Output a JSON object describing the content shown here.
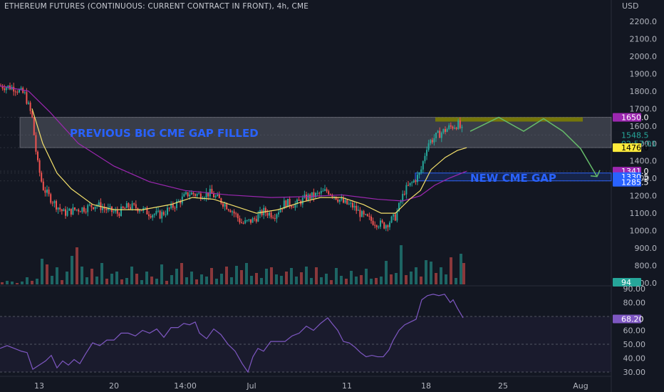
{
  "header": {
    "title": "ETHEREUM FUTURES (CONTINUOUS: CURRENT CONTRACT IN FRONT), 4h, CME"
  },
  "colors": {
    "background": "#131722",
    "up": "#26a69a",
    "down": "#ef5350",
    "ma_fast": "#f5e16b",
    "ma_slow": "#9c27b0",
    "rsi": "#7e57c2",
    "annotation_text": "#2962ff",
    "projection": "#66bb6a",
    "gap_fill": "#808000"
  },
  "annotations": {
    "previous_gap_label": "PREVIOUS BIG CME GAP FILLED",
    "new_gap_label": "NEW CME GAP"
  },
  "price_tags": [
    {
      "value": "1650.0",
      "bg": "#9c27b0",
      "fg": "#ffffff"
    },
    {
      "value": "1548.5",
      "bg": "#131722",
      "fg": "#26a69a"
    },
    {
      "value": "02:57:01",
      "bg": "#131722",
      "fg": "#26a69a"
    },
    {
      "value": "1476.0",
      "bg": "#ffeb3b",
      "fg": "#000000"
    },
    {
      "value": "1341.0",
      "bg": "#9c27b0",
      "fg": "#ffffff"
    },
    {
      "value": "1330.5",
      "bg": "#2962ff",
      "fg": "#ffffff"
    },
    {
      "value": "1285.5",
      "bg": "#2962ff",
      "fg": "#ffffff"
    },
    {
      "value": "94",
      "bg": "#26a69a",
      "fg": "#ffffff"
    },
    {
      "value": "68.20",
      "bg": "#7e57c2",
      "fg": "#ffffff"
    }
  ],
  "chart_data": [
    {
      "type": "candlestick",
      "title": "ETHEREUM FUTURES (CONTINUOUS: CURRENT CONTRACT IN FRONT), 4h, CME",
      "currency": "USD",
      "ylim": [
        700,
        2300
      ],
      "y_ticks": [
        "2200.0",
        "2100.0",
        "2000.0",
        "1900.0",
        "1800.0",
        "1700.0",
        "1600.0",
        "1500.0",
        "1400.0",
        "1300.0",
        "1200.0",
        "1100.0",
        "1000.0",
        "900.0",
        "800.0",
        "700.0"
      ],
      "x_ticks": [
        "13",
        "20",
        "14:00",
        "Jul",
        "11",
        "18",
        "25",
        "Aug"
      ],
      "price_path": [
        [
          0,
          1830
        ],
        [
          20,
          1820
        ],
        [
          35,
          1780
        ],
        [
          45,
          1650
        ],
        [
          52,
          1400
        ],
        [
          60,
          1250
        ],
        [
          68,
          1200
        ],
        [
          78,
          1150
        ],
        [
          90,
          1100
        ],
        [
          105,
          1120
        ],
        [
          120,
          1130
        ],
        [
          135,
          1150
        ],
        [
          150,
          1120
        ],
        [
          165,
          1100
        ],
        [
          180,
          1140
        ],
        [
          195,
          1130
        ],
        [
          210,
          1100
        ],
        [
          225,
          1090
        ],
        [
          240,
          1130
        ],
        [
          255,
          1180
        ],
        [
          265,
          1215
        ],
        [
          280,
          1205
        ],
        [
          295,
          1215
        ],
        [
          310,
          1170
        ],
        [
          325,
          1120
        ],
        [
          340,
          1040
        ],
        [
          355,
          1060
        ],
        [
          370,
          1110
        ],
        [
          385,
          1090
        ],
        [
          400,
          1160
        ],
        [
          415,
          1150
        ],
        [
          430,
          1190
        ],
        [
          445,
          1205
        ],
        [
          460,
          1230
        ],
        [
          470,
          1200
        ],
        [
          482,
          1160
        ],
        [
          495,
          1140
        ],
        [
          510,
          1080
        ],
        [
          525,
          1050
        ],
        [
          540,
          1030
        ],
        [
          555,
          1080
        ],
        [
          568,
          1230
        ],
        [
          580,
          1280
        ],
        [
          590,
          1330
        ],
        [
          600,
          1500
        ],
        [
          615,
          1550
        ],
        [
          630,
          1590
        ],
        [
          643,
          1610
        ],
        [
          650,
          1560
        ]
      ],
      "series": [
        {
          "name": "",
          "kind": "ma_fast",
          "points": [
            [
              45,
              1700
            ],
            [
              60,
              1500
            ],
            [
              80,
              1330
            ],
            [
              100,
              1240
            ],
            [
              130,
              1150
            ],
            [
              160,
              1120
            ],
            [
              200,
              1120
            ],
            [
              240,
              1150
            ],
            [
              270,
              1190
            ],
            [
              300,
              1180
            ],
            [
              330,
              1140
            ],
            [
              360,
              1100
            ],
            [
              390,
              1120
            ],
            [
              420,
              1160
            ],
            [
              450,
              1190
            ],
            [
              480,
              1190
            ],
            [
              510,
              1150
            ],
            [
              535,
              1100
            ],
            [
              555,
              1100
            ],
            [
              575,
              1180
            ],
            [
              590,
              1230
            ],
            [
              605,
              1350
            ],
            [
              625,
              1420
            ],
            [
              642,
              1460
            ],
            [
              655,
              1476
            ]
          ]
        },
        {
          "name": "",
          "kind": "ma_slow",
          "points": [
            [
              0,
              1830
            ],
            [
              40,
              1800
            ],
            [
              70,
              1680
            ],
            [
              110,
              1500
            ],
            [
              160,
              1370
            ],
            [
              210,
              1280
            ],
            [
              260,
              1230
            ],
            [
              320,
              1205
            ],
            [
              380,
              1190
            ],
            [
              430,
              1195
            ],
            [
              480,
              1205
            ],
            [
              530,
              1180
            ],
            [
              565,
              1170
            ],
            [
              590,
              1200
            ],
            [
              610,
              1260
            ],
            [
              630,
              1300
            ],
            [
              655,
              1341
            ]
          ]
        }
      ],
      "levels": [
        {
          "value": 1650.0
        },
        {
          "value": 1548.5
        },
        {
          "value": 1476.0
        },
        {
          "value": 1341.0
        },
        {
          "value": 1330.5
        },
        {
          "value": 1285.5
        }
      ],
      "zones": [
        {
          "label": "PREVIOUS BIG CME GAP FILLED",
          "y_top": 1650,
          "y_bottom": 1476,
          "x_start": 28,
          "x_end": 858
        },
        {
          "label": "NEW CME GAP",
          "y_top": 1330.5,
          "y_bottom": 1285.5,
          "x_start": 583,
          "x_end": 858
        }
      ],
      "projection_path": [
        [
          660,
          1570
        ],
        [
          700,
          1650
        ],
        [
          735,
          1570
        ],
        [
          763,
          1642
        ],
        [
          790,
          1570
        ],
        [
          815,
          1470
        ],
        [
          838,
          1310
        ]
      ]
    },
    {
      "type": "bar",
      "title": "",
      "kind": "volume",
      "bars": [
        [
          3,
          3
        ],
        [
          10,
          5
        ],
        [
          17,
          4
        ],
        [
          24,
          2
        ],
        [
          31,
          4
        ],
        [
          38,
          10
        ],
        [
          45,
          5
        ],
        [
          52,
          8
        ],
        [
          59,
          36
        ],
        [
          66,
          28
        ],
        [
          73,
          12
        ],
        [
          80,
          24
        ],
        [
          87,
          6
        ],
        [
          94,
          18
        ],
        [
          101,
          40
        ],
        [
          108,
          52
        ],
        [
          115,
          25
        ],
        [
          122,
          10
        ],
        [
          129,
          22
        ],
        [
          136,
          11
        ],
        [
          143,
          30
        ],
        [
          150,
          8
        ],
        [
          157,
          15
        ],
        [
          164,
          18
        ],
        [
          171,
          7
        ],
        [
          178,
          9
        ],
        [
          185,
          25
        ],
        [
          192,
          15
        ],
        [
          199,
          6
        ],
        [
          206,
          18
        ],
        [
          213,
          11
        ],
        [
          220,
          8
        ],
        [
          227,
          28
        ],
        [
          234,
          5
        ],
        [
          241,
          13
        ],
        [
          248,
          22
        ],
        [
          255,
          30
        ],
        [
          262,
          10
        ],
        [
          269,
          18
        ],
        [
          276,
          7
        ],
        [
          283,
          14
        ],
        [
          290,
          11
        ],
        [
          297,
          23
        ],
        [
          304,
          8
        ],
        [
          311,
          15
        ],
        [
          318,
          25
        ],
        [
          325,
          10
        ],
        [
          332,
          26
        ],
        [
          339,
          20
        ],
        [
          346,
          30
        ],
        [
          353,
          12
        ],
        [
          360,
          16
        ],
        [
          367,
          9
        ],
        [
          374,
          22
        ],
        [
          381,
          24
        ],
        [
          388,
          14
        ],
        [
          395,
          12
        ],
        [
          402,
          18
        ],
        [
          409,
          23
        ],
        [
          416,
          11
        ],
        [
          423,
          17
        ],
        [
          430,
          25
        ],
        [
          437,
          9
        ],
        [
          444,
          24
        ],
        [
          451,
          10
        ],
        [
          458,
          15
        ],
        [
          465,
          6
        ],
        [
          472,
          23
        ],
        [
          479,
          12
        ],
        [
          486,
          8
        ],
        [
          493,
          19
        ],
        [
          500,
          11
        ],
        [
          507,
          13
        ],
        [
          514,
          22
        ],
        [
          521,
          8
        ],
        [
          528,
          9
        ],
        [
          535,
          11
        ],
        [
          542,
          33
        ],
        [
          549,
          14
        ],
        [
          556,
          16
        ],
        [
          563,
          55
        ],
        [
          570,
          13
        ],
        [
          577,
          18
        ],
        [
          584,
          24
        ],
        [
          591,
          11
        ],
        [
          598,
          34
        ],
        [
          605,
          32
        ],
        [
          612,
          16
        ],
        [
          619,
          24
        ],
        [
          626,
          14
        ],
        [
          633,
          38
        ],
        [
          640,
          9
        ],
        [
          647,
          43
        ],
        [
          651,
          30
        ]
      ]
    },
    {
      "type": "line",
      "title": "",
      "kind": "rsi",
      "ylim": [
        30,
        90
      ],
      "y_ticks": [
        "90.00",
        "80.00",
        "70.00",
        "60.00",
        "50.00",
        "40.00",
        "30.00"
      ],
      "reference_lines": [
        70,
        50,
        30
      ],
      "current_value": 68.2,
      "points": [
        [
          0,
          47
        ],
        [
          10,
          49
        ],
        [
          20,
          47
        ],
        [
          30,
          45
        ],
        [
          38,
          44
        ],
        [
          46,
          32
        ],
        [
          55,
          35
        ],
        [
          64,
          38
        ],
        [
          72,
          42
        ],
        [
          80,
          33
        ],
        [
          88,
          38
        ],
        [
          96,
          35
        ],
        [
          104,
          39
        ],
        [
          112,
          36
        ],
        [
          120,
          43
        ],
        [
          130,
          51
        ],
        [
          140,
          49
        ],
        [
          150,
          53
        ],
        [
          160,
          53
        ],
        [
          170,
          58
        ],
        [
          180,
          58
        ],
        [
          190,
          56
        ],
        [
          200,
          60
        ],
        [
          210,
          58
        ],
        [
          220,
          61
        ],
        [
          230,
          55
        ],
        [
          240,
          62
        ],
        [
          250,
          62
        ],
        [
          258,
          65
        ],
        [
          266,
          64
        ],
        [
          274,
          66
        ],
        [
          280,
          58
        ],
        [
          290,
          54
        ],
        [
          300,
          61
        ],
        [
          310,
          57
        ],
        [
          320,
          50
        ],
        [
          330,
          45
        ],
        [
          340,
          36
        ],
        [
          348,
          30
        ],
        [
          355,
          41
        ],
        [
          362,
          47
        ],
        [
          370,
          45
        ],
        [
          380,
          52
        ],
        [
          390,
          52
        ],
        [
          400,
          52
        ],
        [
          410,
          56
        ],
        [
          420,
          58
        ],
        [
          430,
          63
        ],
        [
          440,
          60
        ],
        [
          450,
          65
        ],
        [
          460,
          69
        ],
        [
          466,
          65
        ],
        [
          474,
          60
        ],
        [
          482,
          52
        ],
        [
          490,
          51
        ],
        [
          498,
          48
        ],
        [
          506,
          44
        ],
        [
          514,
          41
        ],
        [
          522,
          42
        ],
        [
          530,
          41
        ],
        [
          538,
          41
        ],
        [
          546,
          46
        ],
        [
          552,
          53
        ],
        [
          560,
          60
        ],
        [
          568,
          64
        ],
        [
          576,
          66
        ],
        [
          584,
          68
        ],
        [
          592,
          82
        ],
        [
          600,
          85
        ],
        [
          608,
          86
        ],
        [
          616,
          85
        ],
        [
          624,
          86
        ],
        [
          632,
          80
        ],
        [
          636,
          82
        ],
        [
          642,
          76
        ],
        [
          650,
          69
        ]
      ]
    }
  ]
}
